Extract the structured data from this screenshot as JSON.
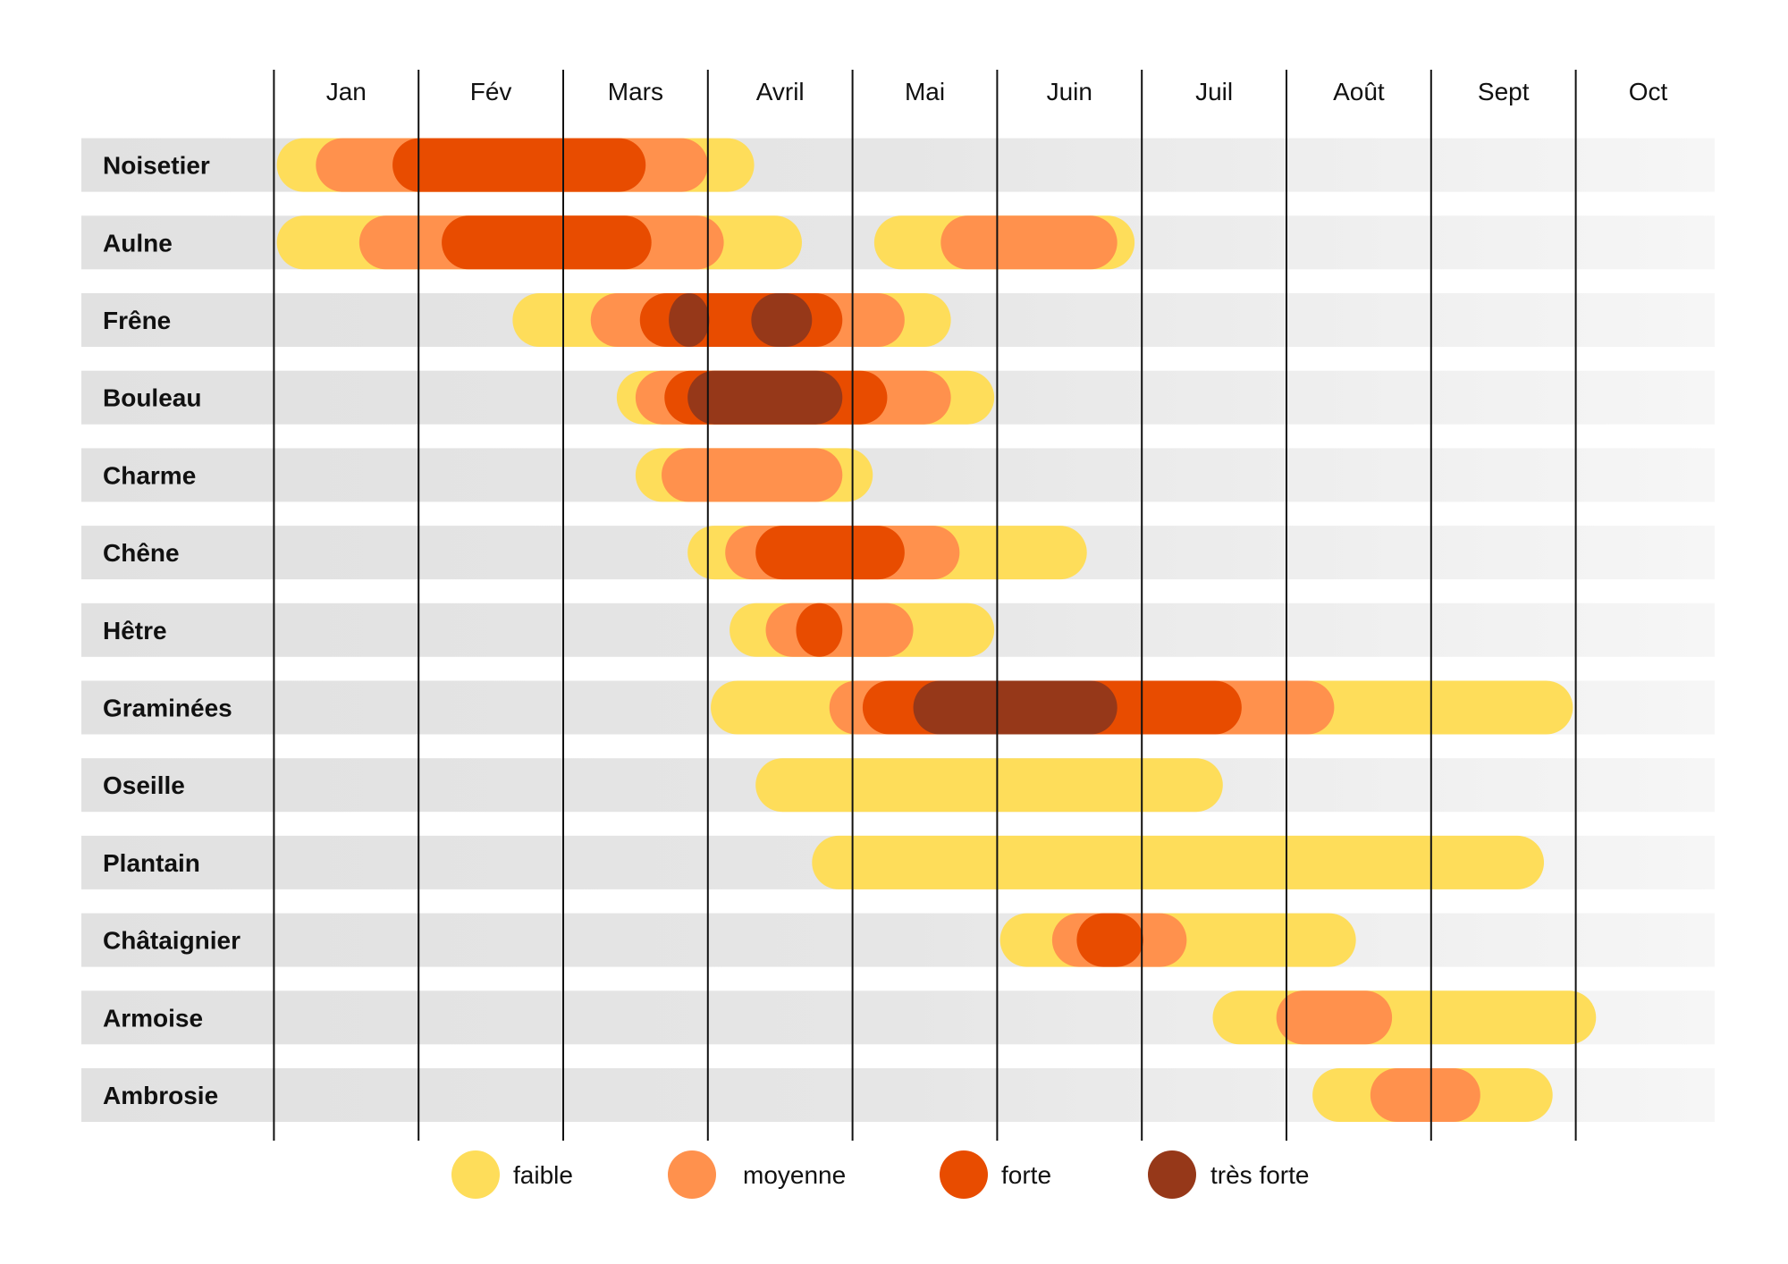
{
  "chart_data": {
    "type": "gantt",
    "x_axis_note_units": "months, 1 = start of Jan",
    "months": [
      "Jan",
      "Fév",
      "Mars",
      "Avril",
      "Mai",
      "Juin",
      "Juil",
      "Août",
      "Sept",
      "Oct"
    ],
    "xlim": [
      1,
      11
    ],
    "grid": true,
    "legend_placement": "bottom",
    "levels": [
      {
        "key": "faible",
        "label": "faible",
        "color": "#FEDD5A"
      },
      {
        "key": "moyenne",
        "label": "moyenne",
        "color": "#FF914D"
      },
      {
        "key": "forte",
        "label": "forte",
        "color": "#E84C00"
      },
      {
        "key": "tres_forte",
        "label": "très forte",
        "color": "#963819"
      }
    ],
    "series": [
      {
        "name": "Noisetier",
        "bars": [
          {
            "level": "faible",
            "start": 1.02,
            "end": 4.32
          },
          {
            "level": "moyenne",
            "start": 1.29,
            "end": 4.0
          },
          {
            "level": "forte",
            "start": 1.82,
            "end": 3.57
          }
        ]
      },
      {
        "name": "Aulne",
        "bars": [
          {
            "level": "faible",
            "start": 1.02,
            "end": 4.65
          },
          {
            "level": "faible",
            "start": 5.15,
            "end": 6.95
          },
          {
            "level": "moyenne",
            "start": 1.59,
            "end": 4.11
          },
          {
            "level": "moyenne",
            "start": 5.61,
            "end": 6.83
          },
          {
            "level": "forte",
            "start": 2.16,
            "end": 3.61
          }
        ]
      },
      {
        "name": "Frêne",
        "bars": [
          {
            "level": "faible",
            "start": 2.65,
            "end": 5.68
          },
          {
            "level": "moyenne",
            "start": 3.19,
            "end": 5.36
          },
          {
            "level": "forte",
            "start": 3.53,
            "end": 4.93
          },
          {
            "level": "tres_forte",
            "start": 3.73,
            "end": 4.01
          },
          {
            "level": "tres_forte",
            "start": 4.3,
            "end": 4.72
          }
        ]
      },
      {
        "name": "Bouleau",
        "bars": [
          {
            "level": "faible",
            "start": 3.37,
            "end": 5.98
          },
          {
            "level": "moyenne",
            "start": 3.5,
            "end": 5.68
          },
          {
            "level": "forte",
            "start": 3.7,
            "end": 5.24
          },
          {
            "level": "tres_forte",
            "start": 3.86,
            "end": 4.93
          }
        ]
      },
      {
        "name": "Charme",
        "bars": [
          {
            "level": "faible",
            "start": 3.5,
            "end": 5.14
          },
          {
            "level": "moyenne",
            "start": 3.68,
            "end": 4.93
          }
        ]
      },
      {
        "name": "Chêne",
        "bars": [
          {
            "level": "faible",
            "start": 3.86,
            "end": 6.62
          },
          {
            "level": "moyenne",
            "start": 4.12,
            "end": 5.74
          },
          {
            "level": "forte",
            "start": 4.33,
            "end": 5.36
          }
        ]
      },
      {
        "name": "Hêtre",
        "bars": [
          {
            "level": "faible",
            "start": 4.15,
            "end": 5.98
          },
          {
            "level": "moyenne",
            "start": 4.4,
            "end": 5.42
          },
          {
            "level": "forte",
            "start": 4.61,
            "end": 4.93
          }
        ]
      },
      {
        "name": "Graminées",
        "bars": [
          {
            "level": "faible",
            "start": 4.02,
            "end": 9.98
          },
          {
            "level": "moyenne",
            "start": 4.84,
            "end": 8.33
          },
          {
            "level": "forte",
            "start": 5.07,
            "end": 7.69
          },
          {
            "level": "tres_forte",
            "start": 5.42,
            "end": 6.83
          }
        ]
      },
      {
        "name": "Oseille",
        "bars": [
          {
            "level": "faible",
            "start": 4.33,
            "end": 7.56
          }
        ]
      },
      {
        "name": "Plantain",
        "bars": [
          {
            "level": "faible",
            "start": 4.72,
            "end": 9.78
          }
        ]
      },
      {
        "name": "Châtaignier",
        "bars": [
          {
            "level": "faible",
            "start": 6.02,
            "end": 8.48
          },
          {
            "level": "moyenne",
            "start": 6.38,
            "end": 7.31
          },
          {
            "level": "forte",
            "start": 6.55,
            "end": 7.01
          }
        ]
      },
      {
        "name": "Armoise",
        "bars": [
          {
            "level": "faible",
            "start": 7.49,
            "end": 10.14
          },
          {
            "level": "moyenne",
            "start": 7.93,
            "end": 8.73
          }
        ]
      },
      {
        "name": "Ambrosie",
        "bars": [
          {
            "level": "faible",
            "start": 8.18,
            "end": 9.84
          },
          {
            "level": "moyenne",
            "start": 8.58,
            "end": 9.34
          }
        ]
      }
    ]
  }
}
